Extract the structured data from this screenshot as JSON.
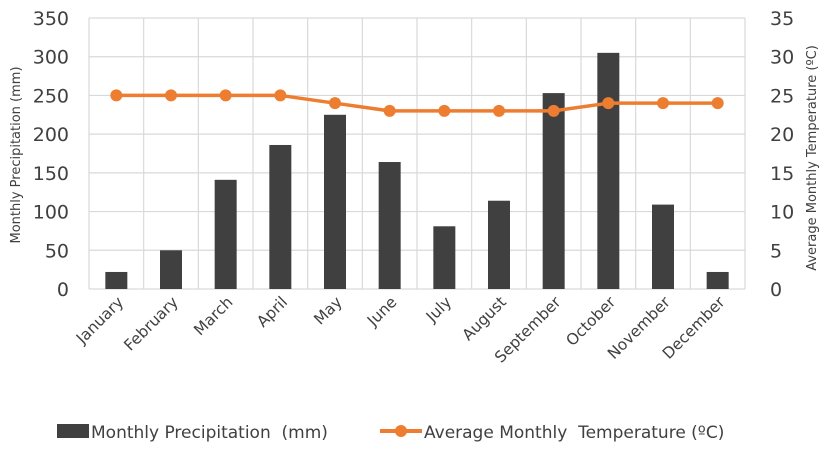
{
  "chart_data": {
    "type": "bar+line",
    "title": "",
    "categories": [
      "January",
      "February",
      "March",
      "April",
      "May",
      "June",
      "July",
      "August",
      "September",
      "October",
      "November",
      "December"
    ],
    "series": [
      {
        "name": "Monthly Precipitation  (mm)",
        "type": "bar",
        "axis": "left",
        "color": "#404040",
        "values": [
          22,
          50,
          141,
          186,
          225,
          164,
          81,
          114,
          253,
          305,
          109,
          22
        ]
      },
      {
        "name": "Average Monthly  Temperature (ºC)",
        "type": "line",
        "axis": "right",
        "color": "#ED7D31",
        "values": [
          25,
          25,
          25,
          25,
          24,
          23,
          23,
          23,
          23,
          24,
          24,
          24
        ]
      }
    ],
    "ylabel": "Monthly Precipitation  (mm)",
    "ylabel_right": "Average Monthly  Temperature (ºC)",
    "ylim": [
      0,
      350
    ],
    "yticks": [
      "0",
      "50",
      "100",
      "150",
      "200",
      "250",
      "300",
      "350"
    ],
    "ylim_right": [
      0,
      35
    ],
    "yticks_right": [
      "0",
      "5",
      "10",
      "15",
      "20",
      "25",
      "30",
      "35"
    ],
    "grid": "both",
    "legend_position": "bottom"
  }
}
